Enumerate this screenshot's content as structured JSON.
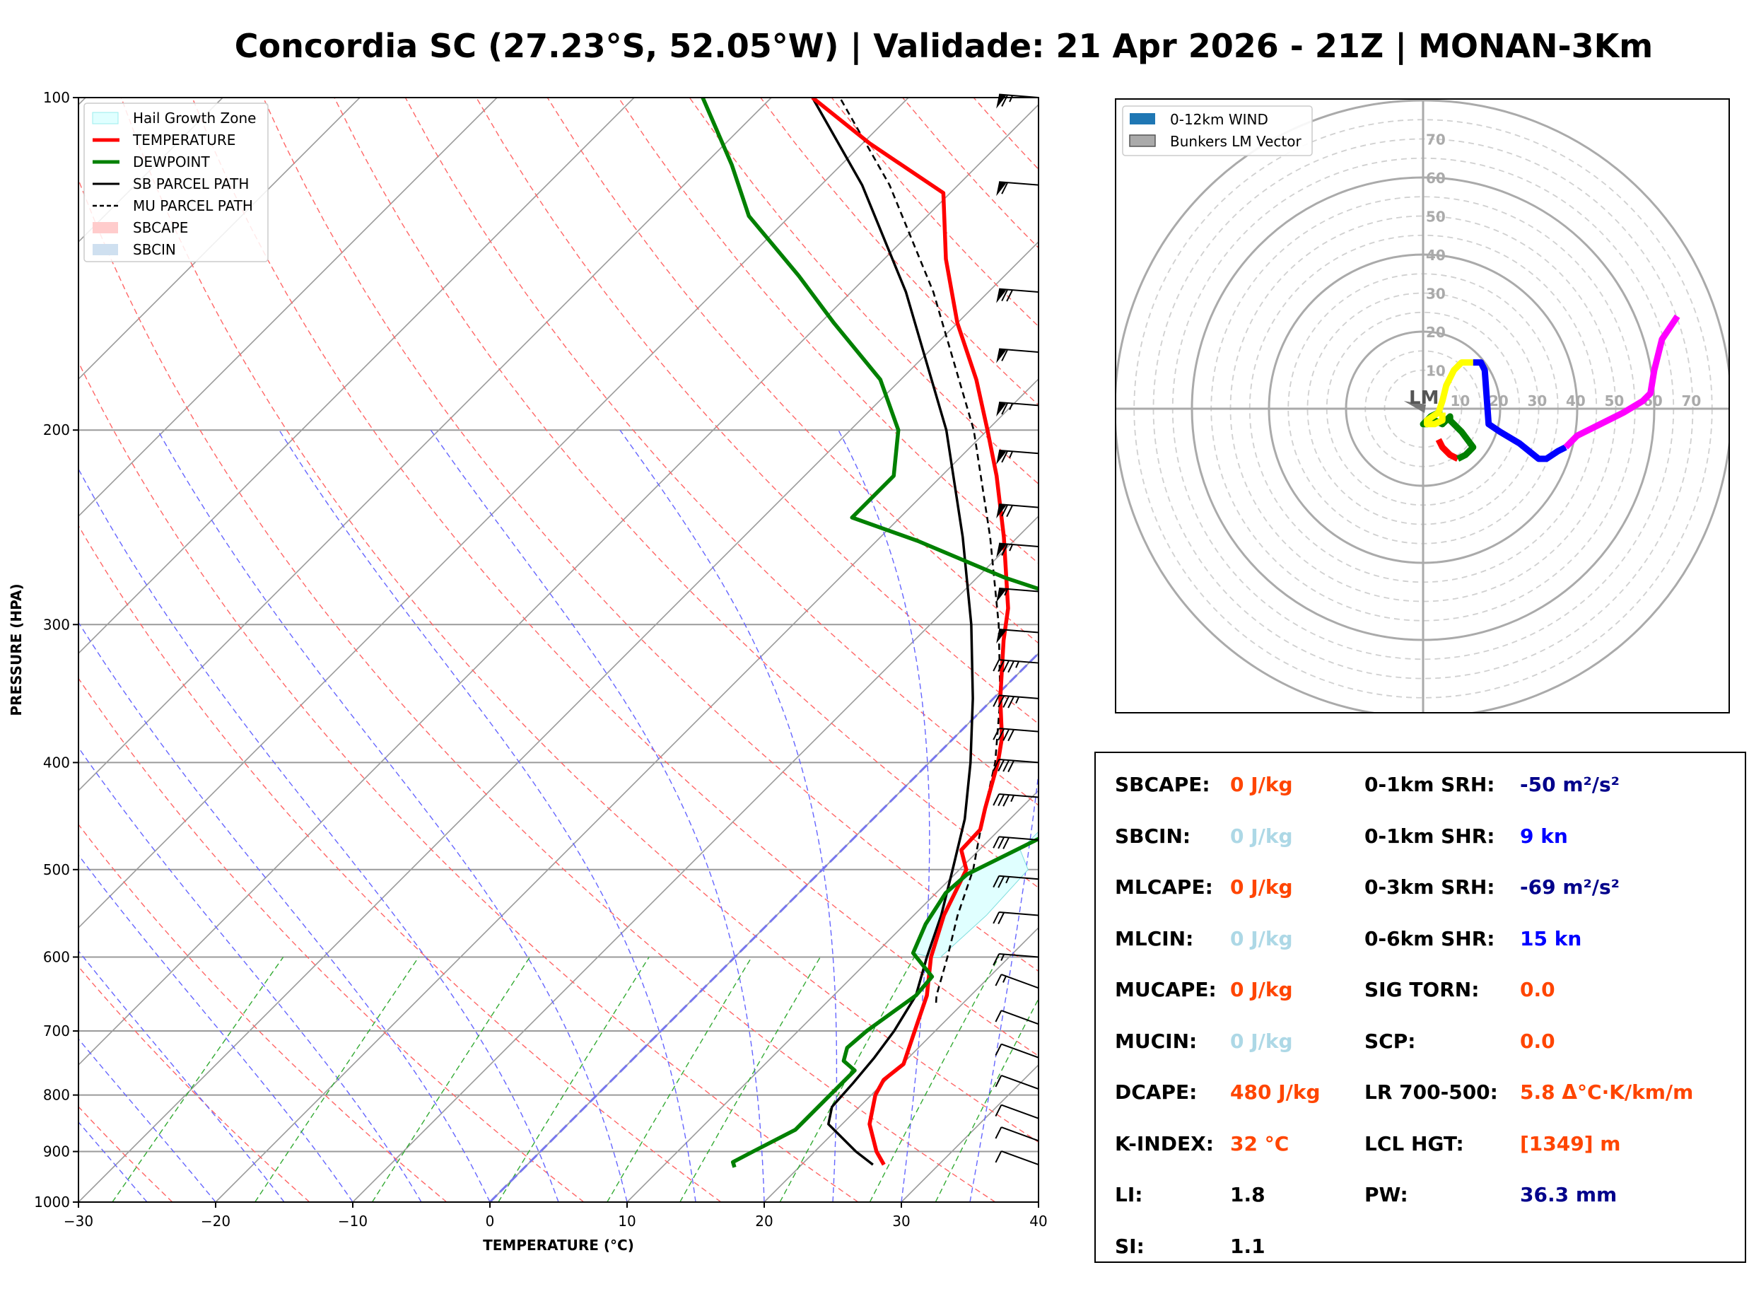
{
  "title": "Concordia SC (27.23°S, 52.05°W) | Validade: 21 Apr 2026 - 21Z | MONAN-3Km",
  "colors": {
    "temperature": "#ff0000",
    "dewpoint": "#008000",
    "parcel": "#000000",
    "hail": "#e0ffff",
    "hodo_blue_legend": "#1f77b4",
    "val_orange": "#ff4500",
    "val_lightblue": "#add8e6",
    "val_navy": "#00008b",
    "val_blue": "#0000ff",
    "val_black": "#000000"
  },
  "chart_data": [
    {
      "type": "line",
      "subtype": "skew-t log-p",
      "xlabel": "TEMPERATURE (°C)",
      "ylabel": "PRESSURE (HPA)",
      "xlim": [
        -30,
        40
      ],
      "ylim": [
        1000,
        100
      ],
      "y_scale": "log",
      "x_ticks": [
        "−30",
        "−20",
        "−10",
        "0",
        "10",
        "20",
        "30",
        "40"
      ],
      "y_ticks": [
        "100",
        "200",
        "300",
        "400",
        "500",
        "600",
        "700",
        "800",
        "900",
        "1000"
      ],
      "legend_position": "top-left",
      "legend": [
        {
          "label": "Hail Growth Zone",
          "style": "hail"
        },
        {
          "label": "TEMPERATURE",
          "style": "temp"
        },
        {
          "label": "DEWPOINT",
          "style": "dew"
        },
        {
          "label": "SB PARCEL PATH",
          "style": "sb"
        },
        {
          "label": "MU PARCEL PATH",
          "style": "mu"
        },
        {
          "label": "SBCAPE",
          "style": "cape"
        },
        {
          "label": "SBCIN",
          "style": "cin"
        }
      ],
      "series": [
        {
          "name": "TEMPERATURE",
          "points": [
            [
              925,
              26.0
            ],
            [
              900,
              24.5
            ],
            [
              850,
              22.0
            ],
            [
              800,
              20.3
            ],
            [
              775,
              19.8
            ],
            [
              750,
              20.1
            ],
            [
              700,
              18.5
            ],
            [
              650,
              16.8
            ],
            [
              600,
              14.3
            ],
            [
              550,
              12.2
            ],
            [
              500,
              10.5
            ],
            [
              480,
              8.7
            ],
            [
              460,
              8.6
            ],
            [
              440,
              7.4
            ],
            [
              400,
              5.0
            ],
            [
              380,
              3.5
            ],
            [
              350,
              0.5
            ],
            [
              310,
              -3.5
            ],
            [
              290,
              -5.5
            ],
            [
              250,
              -11.0
            ],
            [
              220,
              -16.0
            ],
            [
              200,
              -20.0
            ],
            [
              180,
              -24.5
            ],
            [
              160,
              -30.0
            ],
            [
              140,
              -35.5
            ],
            [
              122,
              -40.5
            ],
            [
              110,
              -49.5
            ],
            [
              100,
              -57.0
            ]
          ]
        },
        {
          "name": "DEWPOINT",
          "points": [
            [
              930,
              15.3
            ],
            [
              920,
              14.8
            ],
            [
              900,
              15.5
            ],
            [
              860,
              17.0
            ],
            [
              830,
              17.0
            ],
            [
              780,
              17.0
            ],
            [
              760,
              17.0
            ],
            [
              745,
              15.5
            ],
            [
              725,
              14.8
            ],
            [
              700,
              15.0
            ],
            [
              650,
              16.0
            ],
            [
              625,
              15.8
            ],
            [
              595,
              12.7
            ],
            [
              560,
              11.5
            ],
            [
              525,
              10.7
            ],
            [
              505,
              10.9
            ],
            [
              480,
              12.7
            ],
            [
              460,
              14.2
            ],
            [
              440,
              14.0
            ],
            [
              420,
              12.5
            ],
            [
              390,
              10.5
            ],
            [
              350,
              7.5
            ],
            [
              310,
              3.5
            ],
            [
              290,
              1.0
            ],
            [
              272,
              -8.0
            ],
            [
              252,
              -17.0
            ],
            [
              240,
              -23.5
            ],
            [
              220,
              -23.5
            ],
            [
              200,
              -26.5
            ],
            [
              180,
              -31.5
            ],
            [
              160,
              -39.0
            ],
            [
              145,
              -45.0
            ],
            [
              128,
              -53.0
            ],
            [
              115,
              -58.0
            ],
            [
              100,
              -65.0
            ]
          ]
        },
        {
          "name": "SB PARCEL PATH",
          "points": [
            [
              925,
              25.2
            ],
            [
              900,
              23.0
            ],
            [
              850,
              19.0
            ],
            [
              820,
              18.0
            ],
            [
              780,
              17.8
            ],
            [
              740,
              17.5
            ],
            [
              700,
              17.0
            ],
            [
              650,
              16.0
            ],
            [
              600,
              14.0
            ],
            [
              550,
              12.0
            ],
            [
              500,
              9.5
            ],
            [
              450,
              6.7
            ],
            [
              400,
              3.0
            ],
            [
              350,
              -1.5
            ],
            [
              300,
              -7.0
            ],
            [
              250,
              -14.0
            ],
            [
              200,
              -23.0
            ],
            [
              150,
              -36.0
            ],
            [
              120,
              -47.0
            ],
            [
              100,
              -57.0
            ]
          ]
        },
        {
          "name": "MU PARCEL PATH",
          "points": [
            [
              660,
              18.0
            ],
            [
              650,
              17.5
            ],
            [
              600,
              15.5
            ],
            [
              550,
              13.2
            ],
            [
              500,
              11.0
            ],
            [
              450,
              8.0
            ],
            [
              400,
              4.8
            ],
            [
              350,
              0.5
            ],
            [
              300,
              -5.0
            ],
            [
              250,
              -12.0
            ],
            [
              200,
              -21.0
            ],
            [
              150,
              -34.0
            ],
            [
              120,
              -45.0
            ],
            [
              100,
              -55.0
            ]
          ]
        },
        {
          "name": "Hail Growth Zone",
          "points": [
            [
              600,
              14.3
            ],
            [
              595,
              12.7
            ],
            [
              560,
              11.5
            ],
            [
              525,
              10.7
            ],
            [
              505,
              10.9
            ],
            [
              480,
              12.7
            ],
            [
              460,
              14.2
            ],
            [
              450,
              13.0
            ],
            [
              480,
              13.0
            ],
            [
              500,
              15.0
            ],
            [
              550,
              15.3
            ],
            [
              600,
              15.0
            ]
          ]
        }
      ],
      "wind_barbs": [
        {
          "p": 100,
          "kt": 65
        },
        {
          "p": 120,
          "kt": 60
        },
        {
          "p": 150,
          "kt": 70
        },
        {
          "p": 170,
          "kt": 60
        },
        {
          "p": 190,
          "kt": 65
        },
        {
          "p": 210,
          "kt": 65
        },
        {
          "p": 235,
          "kt": 70
        },
        {
          "p": 255,
          "kt": 65
        },
        {
          "p": 280,
          "kt": 55
        },
        {
          "p": 305,
          "kt": 50
        },
        {
          "p": 325,
          "kt": 45
        },
        {
          "p": 350,
          "kt": 45
        },
        {
          "p": 375,
          "kt": 40
        },
        {
          "p": 400,
          "kt": 40
        },
        {
          "p": 430,
          "kt": 35
        },
        {
          "p": 470,
          "kt": 30
        },
        {
          "p": 510,
          "kt": 25
        },
        {
          "p": 550,
          "kt": 20
        },
        {
          "p": 600,
          "kt": 15
        },
        {
          "p": 640,
          "kt": 15
        },
        {
          "p": 690,
          "kt": 10
        },
        {
          "p": 740,
          "kt": 10
        },
        {
          "p": 790,
          "kt": 10
        },
        {
          "p": 840,
          "kt": 10
        },
        {
          "p": 880,
          "kt": 10
        },
        {
          "p": 925,
          "kt": 10
        }
      ]
    },
    {
      "type": "line",
      "subtype": "hodograph",
      "ring_labels": [
        "10",
        "20",
        "30",
        "40",
        "50",
        "60",
        "70"
      ],
      "legend_position": "top-left",
      "legend": [
        {
          "label": "0-12km WIND",
          "style": "wind"
        },
        {
          "label": "Bunkers LM Vector",
          "style": "bunkers"
        }
      ],
      "storm_motion_label": "LM",
      "storm_motion_vector": [
        -5,
        2
      ],
      "series": [
        {
          "segment": "red",
          "color": "#ff0000",
          "uv": [
            [
              4,
              -8
            ],
            [
              5,
              -10
            ],
            [
              7,
              -12
            ],
            [
              9,
              -13
            ]
          ]
        },
        {
          "segment": "green",
          "color": "#008000",
          "uv": [
            [
              9,
              -13
            ],
            [
              11,
              -12
            ],
            [
              12,
              -11
            ],
            [
              13,
              -10
            ],
            [
              10,
              -6
            ],
            [
              8,
              -4
            ],
            [
              7,
              -3
            ],
            [
              7,
              -2
            ],
            [
              5,
              -4
            ],
            [
              3,
              -3
            ],
            [
              1,
              -4
            ],
            [
              0,
              -4
            ],
            [
              1,
              -3
            ],
            [
              2,
              -2
            ],
            [
              4,
              -1
            ],
            [
              5,
              -1
            ]
          ]
        },
        {
          "segment": "yellow",
          "color": "#ffff00",
          "uv": [
            [
              5,
              -1
            ],
            [
              5,
              -3
            ],
            [
              3,
              -4
            ],
            [
              1,
              -4
            ],
            [
              1,
              -3
            ],
            [
              4,
              -1
            ],
            [
              5,
              2
            ],
            [
              6,
              6
            ],
            [
              8,
              10
            ],
            [
              10,
              12
            ],
            [
              13,
              12
            ]
          ]
        },
        {
          "segment": "blue",
          "color": "#0000ff",
          "uv": [
            [
              13,
              12
            ],
            [
              15,
              12
            ],
            [
              16,
              10
            ],
            [
              17,
              -4
            ],
            [
              20,
              -6
            ],
            [
              25,
              -9
            ],
            [
              30,
              -13
            ],
            [
              32,
              -13
            ],
            [
              35,
              -11
            ],
            [
              37,
              -10
            ]
          ]
        },
        {
          "segment": "magenta",
          "color": "#ff00ff",
          "uv": [
            [
              37,
              -10
            ],
            [
              40,
              -7
            ],
            [
              46,
              -4
            ],
            [
              52,
              -1
            ],
            [
              57,
              2
            ],
            [
              59,
              4
            ],
            [
              60,
              10
            ],
            [
              62,
              18
            ],
            [
              64,
              21
            ],
            [
              66,
              24
            ]
          ]
        }
      ]
    }
  ],
  "stats": {
    "left": [
      {
        "label": "SBCAPE:",
        "value": "0 J/kg",
        "color": "val_orange"
      },
      {
        "label": "SBCIN:",
        "value": "0 J/kg",
        "color": "val_lightblue"
      },
      {
        "label": "MLCAPE:",
        "value": "0 J/kg",
        "color": "val_orange"
      },
      {
        "label": "MLCIN:",
        "value": "0 J/kg",
        "color": "val_lightblue"
      },
      {
        "label": "MUCAPE:",
        "value": "0 J/kg",
        "color": "val_orange"
      },
      {
        "label": "MUCIN:",
        "value": "0 J/kg",
        "color": "val_lightblue"
      },
      {
        "label": "DCAPE:",
        "value": "480 J/kg",
        "color": "val_orange"
      },
      {
        "label": "K-INDEX:",
        "value": "32 °C",
        "color": "val_orange"
      },
      {
        "label": "LI:",
        "value": "1.8",
        "color": "val_black"
      },
      {
        "label": "SI:",
        "value": "1.1",
        "color": "val_black"
      }
    ],
    "right": [
      {
        "label": "0-1km SRH:",
        "value": "-50 m²/s²",
        "color": "val_navy"
      },
      {
        "label": "0-1km SHR:",
        "value": "9 kn",
        "color": "val_blue"
      },
      {
        "label": "0-3km SRH:",
        "value": "-69 m²/s²",
        "color": "val_navy"
      },
      {
        "label": "0-6km SHR:",
        "value": "15 kn",
        "color": "val_blue"
      },
      {
        "label": "SIG TORN:",
        "value": "0.0",
        "color": "val_orange"
      },
      {
        "label": "SCP:",
        "value": "0.0",
        "color": "val_orange"
      },
      {
        "label": "LR 700-500:",
        "value": "5.8 Δ°C·K/km/m",
        "color": "val_orange"
      },
      {
        "label": "LCL HGT:",
        "value": "[1349] m",
        "color": "val_orange"
      },
      {
        "label": "PW:",
        "value": "36.3 mm",
        "color": "val_navy"
      }
    ]
  }
}
